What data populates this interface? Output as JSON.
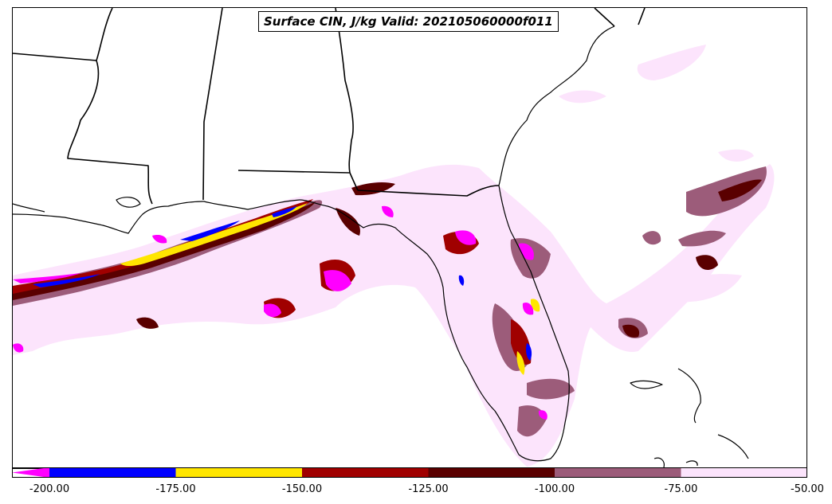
{
  "title": "Surface CIN, J/kg Valid: 202105060000f011",
  "colorbar": {
    "extend_min_color": "#ff00ff",
    "bins": [
      {
        "from": -200,
        "to": -175,
        "color": "#0000ff"
      },
      {
        "from": -175,
        "to": -150,
        "color": "#ffe600"
      },
      {
        "from": -150,
        "to": -125,
        "color": "#a00000"
      },
      {
        "from": -125,
        "to": -100,
        "color": "#5a0000"
      },
      {
        "from": -100,
        "to": -75,
        "color": "#9c5c7a"
      },
      {
        "from": -75,
        "to": -50,
        "color": "#fce4fc"
      }
    ],
    "tick_labels": [
      "-200.00",
      "-175.00",
      "-150.00",
      "-125.00",
      "-100.00",
      "-75.00",
      "-50.00"
    ]
  }
}
